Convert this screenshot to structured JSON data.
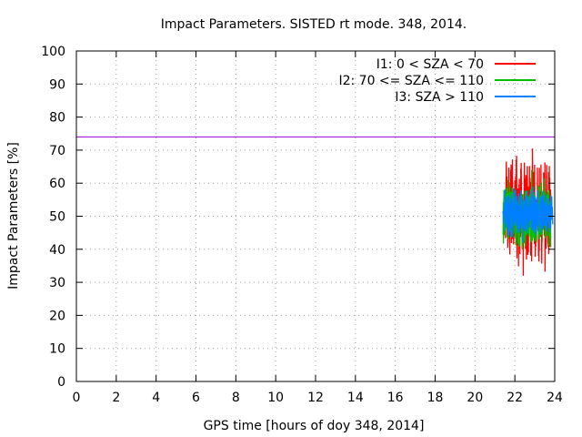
{
  "chart_data": {
    "type": "line",
    "title": "Impact Parameters. SISTED rt mode. 348, 2014.",
    "xlabel": "GPS time [hours of doy 348, 2014]",
    "ylabel": "Impact Parameters [%]",
    "xlim": [
      0,
      24
    ],
    "ylim": [
      0,
      100
    ],
    "xticks": [
      "0",
      "2",
      "4",
      "6",
      "8",
      "10",
      "12",
      "14",
      "16",
      "18",
      "20",
      "22",
      "24"
    ],
    "yticks": [
      "0",
      "10",
      "20",
      "30",
      "40",
      "50",
      "60",
      "70",
      "80",
      "90",
      "100"
    ],
    "grid": true,
    "legend_position": "top-right",
    "reference_line": {
      "y": 74,
      "color": "#9400d3"
    },
    "series": [
      {
        "name": "I1: 0 < SZA < 70",
        "color": "#ff0000",
        "x_range": [
          21.5,
          23.8
        ],
        "center": 51,
        "min": 32,
        "max": 70.5
      },
      {
        "name": "I2: 70 <= SZA <= 110",
        "color": "#00c000",
        "x_range": [
          21.4,
          23.8
        ],
        "center": 51,
        "min": 40,
        "max": 64
      },
      {
        "name": "I3: SZA > 110",
        "color": "#0080ff",
        "x_range": [
          21.4,
          23.9
        ],
        "center": 51,
        "min": 42,
        "max": 59
      }
    ]
  }
}
